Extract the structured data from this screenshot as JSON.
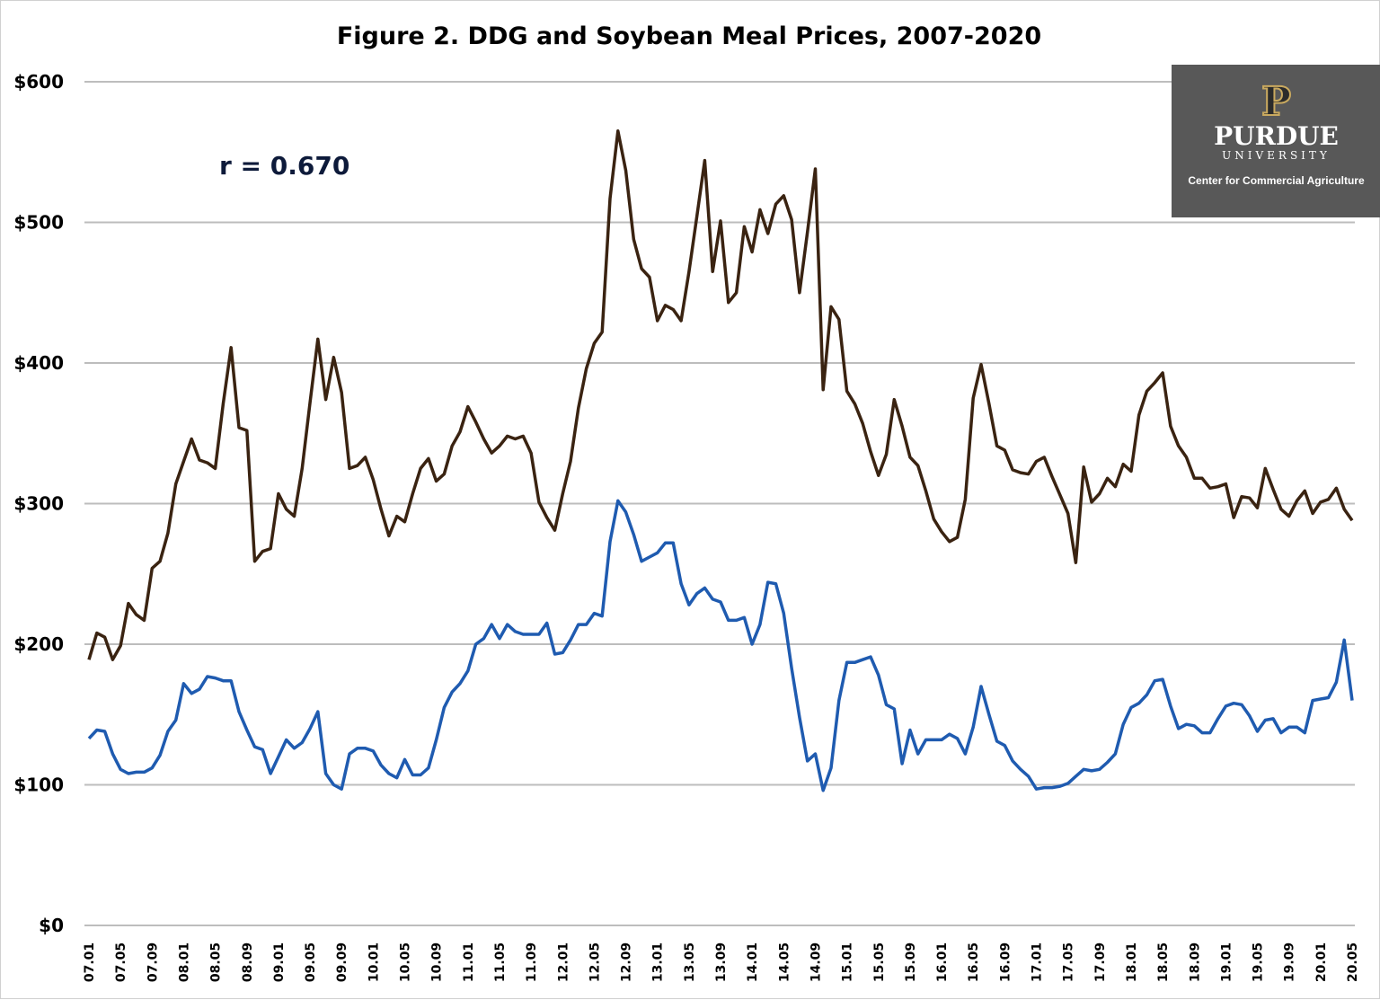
{
  "chart_data": {
    "type": "line",
    "title": "Figure 2. DDG and Soybean Meal Prices, 2007-2020",
    "xlabel": "",
    "ylabel": "",
    "ylim": [
      0,
      600
    ],
    "y_ticks": [
      "$0",
      "$100",
      "$200",
      "$300",
      "$400",
      "$500",
      "$600"
    ],
    "y_tick_values": [
      0,
      100,
      200,
      300,
      400,
      500,
      600
    ],
    "grid": "horizontal",
    "x_tick_labels": [
      "07.01",
      "07.05",
      "07.09",
      "08.01",
      "08.05",
      "08.09",
      "09.01",
      "09.05",
      "09.09",
      "10.01",
      "10.05",
      "10.09",
      "11.01",
      "11.05",
      "11.09",
      "12.01",
      "12.05",
      "12.09",
      "13.01",
      "13.05",
      "13.09",
      "14.01",
      "14.05",
      "14.09",
      "15.01",
      "15.05",
      "15.09",
      "16.01",
      "16.05",
      "16.09",
      "17.01",
      "17.05",
      "17.09",
      "18.01",
      "18.05",
      "18.09",
      "19.01",
      "19.05",
      "19.09",
      "20.01",
      "20.05"
    ],
    "annotation": "r = 0.670",
    "series": [
      {
        "color": "#3a2311",
        "values": [
          189,
          208,
          205,
          189,
          199,
          229,
          221,
          217,
          254,
          259,
          279,
          314,
          330,
          346,
          331,
          329,
          325,
          371,
          411,
          354,
          352,
          259,
          266,
          268,
          307,
          296,
          291,
          325,
          372,
          417,
          374,
          404,
          379,
          325,
          327,
          333,
          317,
          296,
          277,
          291,
          287,
          307,
          325,
          332,
          316,
          321,
          341,
          351,
          369,
          358,
          346,
          336,
          341,
          348,
          346,
          348,
          336,
          301,
          290,
          281,
          307,
          330,
          368,
          396,
          414,
          422,
          517,
          565,
          537,
          488,
          467,
          461,
          430,
          441,
          438,
          430,
          465,
          504,
          544,
          465,
          501,
          443,
          450,
          497,
          479,
          509,
          492,
          513,
          519,
          502,
          450,
          493,
          538,
          381,
          440,
          431,
          380,
          371,
          357,
          337,
          320,
          335,
          374,
          355,
          333,
          327,
          309,
          289,
          280,
          273,
          276,
          303,
          375,
          399,
          371,
          341,
          338,
          324,
          322,
          321,
          330,
          333,
          319,
          306,
          293,
          258,
          326,
          301,
          307,
          318,
          312,
          328,
          323,
          363,
          380,
          386,
          393,
          355,
          341,
          333,
          318,
          318,
          311,
          312,
          314,
          290,
          305,
          304,
          297,
          325,
          310,
          296,
          291,
          302,
          309,
          293,
          301,
          303,
          311,
          296,
          288
        ]
      },
      {
        "color": "#1f5bb0",
        "values": [
          133,
          139,
          138,
          122,
          111,
          108,
          109,
          109,
          112,
          121,
          138,
          146,
          172,
          165,
          168,
          177,
          176,
          174,
          174,
          152,
          139,
          127,
          125,
          108,
          120,
          132,
          126,
          130,
          140,
          152,
          108,
          100,
          97,
          122,
          126,
          126,
          124,
          114,
          108,
          105,
          118,
          107,
          107,
          112,
          132,
          155,
          166,
          172,
          181,
          200,
          204,
          214,
          204,
          214,
          209,
          207,
          207,
          207,
          215,
          193,
          194,
          203,
          214,
          214,
          222,
          220,
          273,
          302,
          294,
          278,
          259,
          262,
          265,
          272,
          272,
          243,
          228,
          236,
          240,
          232,
          230,
          217,
          217,
          219,
          200,
          214,
          244,
          243,
          222,
          183,
          148,
          117,
          122,
          96,
          112,
          160,
          187,
          187,
          189,
          191,
          178,
          157,
          154,
          115,
          139,
          122,
          132,
          132,
          132,
          136,
          133,
          122,
          141,
          170,
          150,
          131,
          128,
          117,
          111,
          106,
          97,
          98,
          98,
          99,
          101,
          106,
          111,
          110,
          111,
          116,
          122,
          143,
          155,
          158,
          164,
          174,
          175,
          156,
          140,
          143,
          142,
          137,
          137,
          147,
          156,
          158,
          157,
          149,
          138,
          146,
          147,
          137,
          141,
          141,
          137,
          160,
          161,
          162,
          173,
          203,
          160
        ]
      }
    ]
  },
  "logo": {
    "mark": "P",
    "name": "PURDUE",
    "sub": "UNIVERSITY",
    "center": "Center for Commercial Agriculture",
    "background": "#585858"
  }
}
